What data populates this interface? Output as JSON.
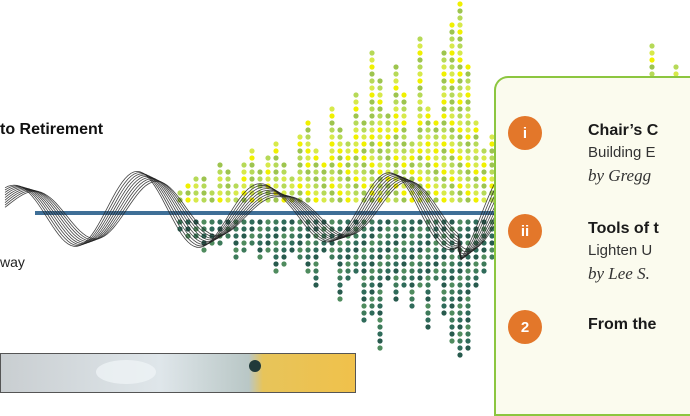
{
  "header": {
    "title_fragment": "to Retirement"
  },
  "intro": {
    "text_fragment": "way"
  },
  "contents": {
    "items": [
      {
        "badge": "i",
        "title": "Chair’s C",
        "subtitle": "Building E",
        "byline": "by Gregg"
      },
      {
        "badge": "ii",
        "title": "Tools of t",
        "subtitle": "Lighten U",
        "byline": "by Lee S."
      },
      {
        "badge": "2",
        "title": "From the"
      }
    ]
  },
  "colors": {
    "accent_orange": "#e3772a",
    "panel_border": "#8cc63f",
    "panel_fill": "#fbfbee",
    "dots_top_light": "#f0f000",
    "dots_top_mid": "#b6d957",
    "dots_bottom": "#2f6b5a"
  },
  "icons": {
    "decoration": "sound-wave-icon",
    "photo": "photo-image"
  }
}
